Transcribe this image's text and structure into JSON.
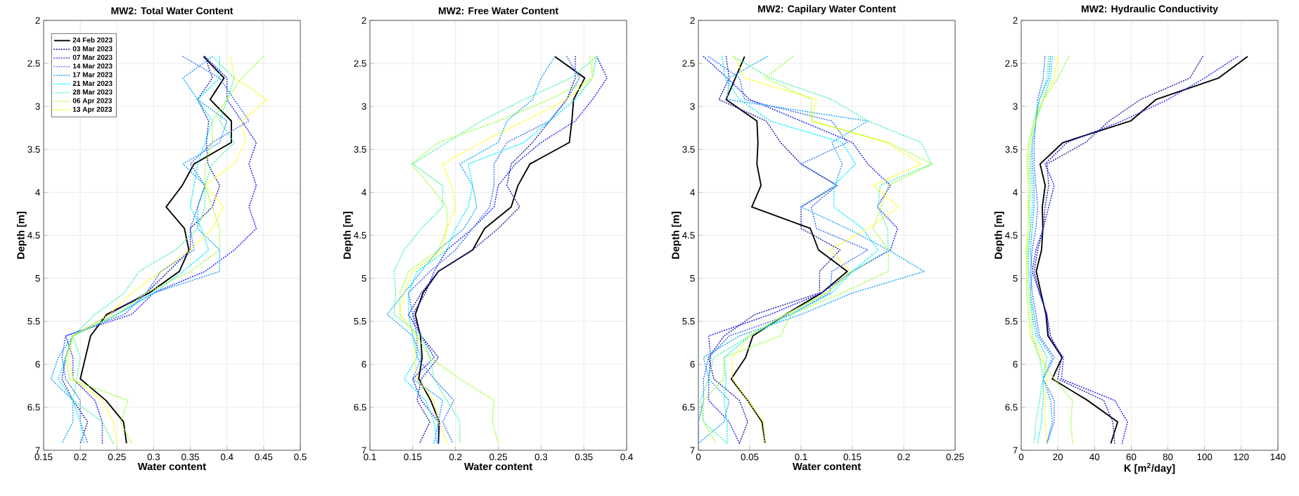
{
  "chart_data": [
    {
      "type": "line",
      "title": "MW2: Total Water Content",
      "xlabel": "Water content",
      "ylabel": "Depth [m]",
      "xlim": [
        0.15,
        0.5
      ],
      "xticks": [
        0.15,
        0.2,
        0.25,
        0.3,
        0.35,
        0.4,
        0.45,
        0.5
      ],
      "ylim": [
        7,
        2
      ],
      "yticks": [
        2,
        2.5,
        3,
        3.5,
        4,
        4.5,
        5,
        5.5,
        6,
        6.5,
        7
      ],
      "grid": true,
      "legend": "top left",
      "series": [
        {
          "name": "24 Feb 2023",
          "color": "#000000",
          "line_style": "solid",
          "x": [
            0.368,
            0.396,
            0.377,
            0.406,
            0.406,
            0.355,
            0.339,
            0.317,
            0.342,
            0.348,
            0.335,
            0.294,
            0.236,
            0.214,
            0.207,
            0.2,
            0.235,
            0.259,
            0.263
          ],
          "values": [
            2.42,
            2.67,
            2.92,
            3.17,
            3.42,
            3.67,
            3.92,
            4.17,
            4.42,
            4.67,
            4.92,
            5.17,
            5.42,
            5.67,
            5.92,
            6.17,
            6.42,
            6.67,
            6.92
          ]
        },
        {
          "name": "03 Mar 2023",
          "color": "#1f1fa8",
          "line_style": "dotted",
          "x": [
            0.37,
            0.38,
            0.36,
            0.375,
            0.372,
            0.374,
            0.39,
            0.38,
            0.35,
            0.35,
            0.32,
            0.29,
            0.24,
            0.19,
            0.18,
            0.175,
            0.19,
            0.21,
            0.2
          ],
          "values": [
            2.42,
            2.67,
            2.92,
            3.17,
            3.42,
            3.67,
            3.92,
            4.17,
            4.42,
            4.67,
            4.92,
            5.17,
            5.42,
            5.67,
            5.92,
            6.17,
            6.42,
            6.67,
            6.92
          ]
        },
        {
          "name": "07 Mar 2023",
          "color": "#2020ff",
          "line_style": "dotted",
          "x": [
            0.37,
            0.4,
            0.4,
            0.42,
            0.44,
            0.43,
            0.44,
            0.43,
            0.44,
            0.41,
            0.37,
            0.3,
            0.27,
            0.18,
            0.19,
            0.19,
            0.22,
            0.23,
            0.23
          ],
          "values": [
            2.42,
            2.67,
            2.92,
            3.17,
            3.42,
            3.67,
            3.92,
            4.17,
            4.42,
            4.67,
            4.92,
            5.17,
            5.42,
            5.67,
            5.92,
            6.17,
            6.42,
            6.67,
            6.92
          ]
        },
        {
          "name": "14 Mar 2023",
          "color": "#3a6cff",
          "line_style": "dotted",
          "x": [
            0.34,
            0.39,
            0.41,
            0.43,
            0.38,
            0.35,
            0.37,
            0.36,
            0.35,
            0.355,
            0.31,
            0.29,
            0.26,
            0.18,
            0.175,
            0.18,
            0.2,
            0.2,
            0.21
          ],
          "values": [
            2.42,
            2.67,
            2.92,
            3.17,
            3.42,
            3.67,
            3.92,
            4.17,
            4.42,
            4.67,
            4.92,
            5.17,
            5.42,
            5.67,
            5.92,
            6.17,
            6.42,
            6.67,
            6.92
          ]
        },
        {
          "name": "17 Mar 2023",
          "color": "#1aa3ff",
          "line_style": "dotted",
          "x": [
            0.38,
            0.34,
            0.36,
            0.4,
            0.39,
            0.34,
            0.37,
            0.36,
            0.36,
            0.39,
            0.39,
            0.3,
            0.25,
            0.19,
            0.17,
            0.16,
            0.19,
            0.19,
            0.175
          ],
          "values": [
            2.42,
            2.67,
            2.92,
            3.17,
            3.42,
            3.67,
            3.92,
            4.17,
            4.42,
            4.67,
            4.92,
            5.17,
            5.42,
            5.67,
            5.92,
            6.17,
            6.42,
            6.67,
            6.92
          ]
        },
        {
          "name": "21 Mar 2023",
          "color": "#00eeff",
          "line_style": "dotted",
          "x": [
            0.39,
            0.39,
            0.36,
            0.38,
            0.37,
            0.36,
            0.355,
            0.35,
            0.365,
            0.375,
            0.34,
            0.3,
            0.25,
            0.19,
            0.18,
            0.17,
            0.19,
            0.2,
            0.205
          ],
          "values": [
            2.42,
            2.67,
            2.92,
            3.17,
            3.42,
            3.67,
            3.92,
            4.17,
            4.42,
            4.67,
            4.92,
            5.17,
            5.42,
            5.67,
            5.92,
            6.17,
            6.42,
            6.67,
            6.92
          ]
        },
        {
          "name": "28 Mar 2023",
          "color": "#40f5a0",
          "line_style": "dotted",
          "x": [
            0.38,
            0.41,
            0.4,
            0.39,
            0.41,
            0.38,
            0.37,
            0.37,
            0.36,
            0.33,
            0.28,
            0.26,
            0.22,
            0.19,
            0.2,
            0.195,
            0.19,
            0.23,
            0.245
          ],
          "values": [
            2.42,
            2.67,
            2.92,
            3.17,
            3.42,
            3.67,
            3.92,
            4.17,
            4.42,
            4.67,
            4.92,
            5.17,
            5.42,
            5.67,
            5.92,
            6.17,
            6.42,
            6.67,
            6.92
          ]
        },
        {
          "name": "06 Apr 2023",
          "color": "#99ff33",
          "line_style": "dotted",
          "x": [
            0.45,
            0.42,
            0.4,
            0.38,
            0.38,
            0.37,
            0.37,
            0.38,
            0.39,
            0.39,
            0.35,
            0.29,
            0.25,
            0.19,
            0.18,
            0.185,
            0.265,
            0.255,
            0.27
          ],
          "values": [
            2.42,
            2.67,
            2.92,
            3.17,
            3.42,
            3.67,
            3.92,
            4.17,
            4.42,
            4.67,
            4.92,
            5.17,
            5.42,
            5.67,
            5.92,
            6.17,
            6.42,
            6.67,
            6.92
          ]
        },
        {
          "name": "13 Apr 2023",
          "color": "#ffff00",
          "line_style": "dotted",
          "x": [
            0.405,
            0.41,
            0.455,
            0.42,
            0.425,
            0.41,
            0.37,
            0.395,
            0.38,
            0.35,
            0.31,
            0.27,
            0.24,
            0.19,
            0.185,
            0.19,
            0.23,
            0.245,
            0.25
          ],
          "values": [
            2.42,
            2.67,
            2.92,
            3.17,
            3.42,
            3.67,
            3.92,
            4.17,
            4.42,
            4.67,
            4.92,
            5.17,
            5.42,
            5.67,
            5.92,
            6.17,
            6.42,
            6.67,
            6.92
          ]
        }
      ]
    },
    {
      "type": "line",
      "title": "MW2: Free Water Content",
      "xlabel": "Water content",
      "ylabel": "Depth [m]",
      "xlim": [
        0.1,
        0.4
      ],
      "xticks": [
        0.1,
        0.15,
        0.2,
        0.25,
        0.3,
        0.35,
        0.4
      ],
      "ylim": [
        7,
        2
      ],
      "yticks": [
        2,
        2.5,
        3,
        3.5,
        4,
        4.5,
        5,
        5.5,
        6,
        6.5,
        7
      ],
      "grid": true,
      "series": [
        {
          "color": "#000000",
          "line_style": "solid",
          "x": [
            0.316,
            0.351,
            0.338,
            0.336,
            0.333,
            0.287,
            0.273,
            0.265,
            0.234,
            0.22,
            0.18,
            0.162,
            0.153,
            0.159,
            0.161,
            0.157,
            0.171,
            0.181,
            0.18
          ],
          "values": [
            2.42,
            2.67,
            2.92,
            3.17,
            3.42,
            3.67,
            3.92,
            4.17,
            4.42,
            4.67,
            4.92,
            5.17,
            5.42,
            5.67,
            5.92,
            6.17,
            6.42,
            6.67,
            6.92
          ]
        },
        {
          "color": "#1f1fa8",
          "line_style": "dotted",
          "x": [
            0.34,
            0.34,
            0.33,
            0.31,
            0.29,
            0.265,
            0.26,
            0.275,
            0.25,
            0.22,
            0.18,
            0.16,
            0.145,
            0.16,
            0.18,
            0.16,
            0.155,
            0.17,
            0.158
          ],
          "values": [
            2.42,
            2.67,
            2.92,
            3.17,
            3.42,
            3.67,
            3.92,
            4.17,
            4.42,
            4.67,
            4.92,
            5.17,
            5.42,
            5.67,
            5.92,
            6.17,
            6.42,
            6.67,
            6.92
          ]
        },
        {
          "color": "#2020ff",
          "line_style": "dotted",
          "x": [
            0.365,
            0.377,
            0.36,
            0.34,
            0.3,
            0.27,
            0.25,
            0.245,
            0.22,
            0.19,
            0.175,
            0.165,
            0.15,
            0.16,
            0.175,
            0.15,
            0.16,
            0.18,
            0.18
          ],
          "values": [
            2.42,
            2.67,
            2.92,
            3.17,
            3.42,
            3.67,
            3.92,
            4.17,
            4.42,
            4.67,
            4.92,
            5.17,
            5.42,
            5.67,
            5.92,
            6.17,
            6.42,
            6.67,
            6.92
          ]
        },
        {
          "color": "#3a6cff",
          "line_style": "dotted",
          "x": [
            0.33,
            0.345,
            0.33,
            0.31,
            0.26,
            0.245,
            0.245,
            0.24,
            0.22,
            0.2,
            0.17,
            0.145,
            0.15,
            0.155,
            0.155,
            0.175,
            0.198,
            0.185,
            0.197
          ],
          "values": [
            2.42,
            2.67,
            2.92,
            3.17,
            3.42,
            3.67,
            3.92,
            4.17,
            4.42,
            4.67,
            4.92,
            5.17,
            5.42,
            5.67,
            5.92,
            6.17,
            6.42,
            6.67,
            6.92
          ]
        },
        {
          "color": "#1aa3ff",
          "line_style": "dotted",
          "x": [
            0.316,
            0.3,
            0.29,
            0.26,
            0.25,
            0.205,
            0.22,
            0.225,
            0.21,
            0.18,
            0.16,
            0.14,
            0.12,
            0.15,
            0.16,
            0.15,
            0.185,
            0.18,
            0.175
          ],
          "values": [
            2.42,
            2.67,
            2.92,
            3.17,
            3.42,
            3.67,
            3.92,
            4.17,
            4.42,
            4.67,
            4.92,
            5.17,
            5.42,
            5.67,
            5.92,
            6.17,
            6.42,
            6.67,
            6.92
          ]
        },
        {
          "color": "#00eeff",
          "line_style": "dotted",
          "x": [
            0.365,
            0.36,
            0.34,
            0.31,
            0.28,
            0.215,
            0.22,
            0.215,
            0.2,
            0.19,
            0.155,
            0.145,
            0.145,
            0.15,
            0.155,
            0.14,
            0.165,
            0.175,
            0.178
          ],
          "values": [
            2.42,
            2.67,
            2.92,
            3.17,
            3.42,
            3.67,
            3.92,
            4.17,
            4.42,
            4.67,
            4.92,
            5.17,
            5.42,
            5.67,
            5.92,
            6.17,
            6.42,
            6.67,
            6.92
          ]
        },
        {
          "color": "#40f5a0",
          "line_style": "dotted",
          "x": [
            0.365,
            0.335,
            0.28,
            0.23,
            0.19,
            0.15,
            0.185,
            0.185,
            0.16,
            0.14,
            0.128,
            0.13,
            0.128,
            0.16,
            0.17,
            0.175,
            0.19,
            0.205,
            0.205
          ],
          "values": [
            2.42,
            2.67,
            2.92,
            3.17,
            3.42,
            3.67,
            3.92,
            4.17,
            4.42,
            4.67,
            4.92,
            5.17,
            5.42,
            5.67,
            5.92,
            6.17,
            6.42,
            6.67,
            6.92
          ]
        },
        {
          "color": "#99ff33",
          "line_style": "dotted",
          "x": [
            0.357,
            0.36,
            0.31,
            0.25,
            0.18,
            0.148,
            0.17,
            0.19,
            0.19,
            0.18,
            0.145,
            0.135,
            0.135,
            0.155,
            0.17,
            0.205,
            0.245,
            0.243,
            0.25
          ],
          "values": [
            2.42,
            2.67,
            2.92,
            3.17,
            3.42,
            3.67,
            3.92,
            4.17,
            4.42,
            4.67,
            4.92,
            5.17,
            5.42,
            5.67,
            5.92,
            6.17,
            6.42,
            6.67,
            6.92
          ]
        },
        {
          "color": "#ffff00",
          "line_style": "dotted",
          "x": [
            0.36,
            0.36,
            0.33,
            0.28,
            0.23,
            0.185,
            0.195,
            0.2,
            0.19,
            0.185,
            0.15,
            0.14,
            0.135,
            0.155,
            0.152,
            0.155,
            0.175,
            0.18,
            0.19
          ],
          "values": [
            2.42,
            2.67,
            2.92,
            3.17,
            3.42,
            3.67,
            3.92,
            4.17,
            4.42,
            4.67,
            4.92,
            5.17,
            5.42,
            5.67,
            5.92,
            6.17,
            6.42,
            6.67,
            6.92
          ]
        }
      ]
    },
    {
      "type": "line",
      "title": "MW2: Capilary Water Content",
      "xlabel": "Water content",
      "ylabel": "Depth [m]",
      "xlim": [
        0,
        0.25
      ],
      "xticks": [
        0,
        0.05,
        0.1,
        0.15,
        0.2,
        0.25
      ],
      "ylim": [
        7,
        2
      ],
      "yticks": [
        2,
        2.5,
        3,
        3.5,
        4,
        4.5,
        5,
        5.5,
        6,
        6.5,
        7
      ],
      "grid": true,
      "series": [
        {
          "color": "#000000",
          "line_style": "solid",
          "x": [
            0.045,
            0.036,
            0.027,
            0.057,
            0.058,
            0.057,
            0.061,
            0.052,
            0.109,
            0.117,
            0.145,
            0.12,
            0.085,
            0.053,
            0.046,
            0.032,
            0.048,
            0.062,
            0.065
          ],
          "values": [
            2.42,
            2.67,
            2.92,
            3.17,
            3.42,
            3.67,
            3.92,
            4.17,
            4.42,
            4.67,
            4.92,
            5.17,
            5.42,
            5.67,
            5.92,
            6.17,
            6.42,
            6.67,
            6.92
          ]
        },
        {
          "color": "#1f1fa8",
          "line_style": "dotted",
          "x": [
            0.027,
            0.03,
            0.02,
            0.066,
            0.08,
            0.1,
            0.135,
            0.1,
            0.1,
            0.138,
            0.118,
            0.118,
            0.055,
            0.025,
            0.01,
            0.015,
            0.04,
            0.048,
            0.04
          ],
          "values": [
            2.42,
            2.67,
            2.92,
            3.17,
            3.42,
            3.67,
            3.92,
            4.17,
            4.42,
            4.67,
            4.92,
            5.17,
            5.42,
            5.67,
            5.92,
            6.17,
            6.42,
            6.67,
            6.92
          ]
        },
        {
          "color": "#2020ff",
          "line_style": "dotted",
          "x": [
            0.005,
            0.028,
            0.05,
            0.1,
            0.15,
            0.165,
            0.187,
            0.174,
            0.194,
            0.187,
            0.15,
            0.12,
            0.07,
            0.01,
            0.012,
            0.01,
            0.01,
            0.03,
            0.04
          ],
          "values": [
            2.42,
            2.67,
            2.92,
            3.17,
            3.42,
            3.67,
            3.92,
            4.17,
            4.42,
            4.67,
            4.92,
            5.17,
            5.42,
            5.67,
            5.92,
            6.17,
            6.42,
            6.67,
            6.92
          ]
        },
        {
          "color": "#3a6cff",
          "line_style": "dotted",
          "x": [
            0.01,
            0.04,
            0.045,
            0.13,
            0.145,
            0.1,
            0.135,
            0.11,
            0.115,
            0.165,
            0.13,
            0.128,
            0.09,
            0.03,
            0.01,
            0.005,
            0.005,
            0.0,
            0.0
          ],
          "values": [
            2.42,
            2.67,
            2.92,
            3.17,
            3.42,
            3.67,
            3.92,
            4.17,
            4.42,
            4.67,
            4.92,
            5.17,
            5.42,
            5.67,
            5.92,
            6.17,
            6.42,
            6.67,
            6.92
          ]
        },
        {
          "color": "#1aa3ff",
          "line_style": "dotted",
          "x": [
            0.067,
            0.03,
            0.028,
            0.165,
            0.13,
            0.14,
            0.133,
            0.1,
            0.145,
            0.185,
            0.22,
            0.15,
            0.1,
            0.04,
            0.005,
            0.01,
            0.03,
            0.025,
            0.0
          ],
          "values": [
            2.42,
            2.67,
            2.92,
            3.17,
            3.42,
            3.67,
            3.92,
            4.17,
            4.42,
            4.67,
            4.92,
            5.17,
            5.42,
            5.67,
            5.92,
            6.17,
            6.42,
            6.67,
            6.92
          ]
        },
        {
          "color": "#00eeff",
          "line_style": "dotted",
          "x": [
            0.023,
            0.026,
            0.04,
            0.07,
            0.14,
            0.153,
            0.132,
            0.132,
            0.16,
            0.175,
            0.15,
            0.13,
            0.09,
            0.05,
            0.025,
            0.027,
            0.025,
            0.028,
            0.028
          ],
          "values": [
            2.42,
            2.67,
            2.92,
            3.17,
            3.42,
            3.67,
            3.92,
            4.17,
            4.42,
            4.67,
            4.92,
            5.17,
            5.42,
            5.67,
            5.92,
            6.17,
            6.42,
            6.67,
            6.92
          ]
        },
        {
          "color": "#40f5a0",
          "line_style": "dotted",
          "x": [
            0.034,
            0.07,
            0.13,
            0.165,
            0.217,
            0.227,
            0.177,
            0.175,
            0.184,
            0.185,
            0.15,
            0.125,
            0.085,
            0.05,
            0.015,
            0.01,
            0.002,
            0.005,
            0.028
          ],
          "values": [
            2.42,
            2.67,
            2.92,
            3.17,
            3.42,
            3.67,
            3.92,
            4.17,
            4.42,
            4.67,
            4.92,
            5.17,
            5.42,
            5.67,
            5.92,
            6.17,
            6.42,
            6.67,
            6.92
          ]
        },
        {
          "color": "#99ff33",
          "line_style": "dotted",
          "x": [
            0.092,
            0.065,
            0.11,
            0.11,
            0.185,
            0.228,
            0.185,
            0.178,
            0.17,
            0.185,
            0.185,
            0.14,
            0.09,
            0.08,
            0.025,
            0.025,
            0.005,
            0.005,
            0.017
          ],
          "values": [
            2.42,
            2.67,
            2.92,
            3.17,
            3.42,
            3.67,
            3.92,
            4.17,
            4.42,
            4.67,
            4.92,
            5.17,
            5.42,
            5.67,
            5.92,
            6.17,
            6.42,
            6.67,
            6.92
          ]
        },
        {
          "color": "#ffff00",
          "line_style": "dotted",
          "x": [
            0.035,
            0.045,
            0.115,
            0.11,
            0.183,
            0.217,
            0.17,
            0.195,
            0.165,
            0.128,
            0.148,
            0.125,
            0.085,
            0.05,
            0.033,
            0.033,
            0.048,
            0.063,
            0.065
          ],
          "values": [
            2.42,
            2.67,
            2.92,
            3.17,
            3.42,
            3.67,
            3.92,
            4.17,
            4.42,
            4.67,
            4.92,
            5.17,
            5.42,
            5.67,
            5.92,
            6.17,
            6.42,
            6.67,
            6.92
          ]
        }
      ]
    },
    {
      "type": "line",
      "title": "MW2: Hydraulic Conductivity",
      "xlabel": "K [m$^{2}$/day]",
      "ylabel": "Depth [m]",
      "xlim": [
        0,
        140
      ],
      "xticks": [
        0,
        20,
        40,
        60,
        80,
        100,
        120,
        140
      ],
      "ylim": [
        7,
        2
      ],
      "yticks": [
        2,
        2.5,
        3,
        3.5,
        4,
        4.5,
        5,
        5.5,
        6,
        6.5,
        7
      ],
      "grid": true,
      "series": [
        {
          "color": "#000000",
          "line_style": "solid",
          "x": [
            123.5,
            107.7,
            73.5,
            59.7,
            22.8,
            10.3,
            13.1,
            11.5,
            11.8,
            11.1,
            8.2,
            10.8,
            13.5,
            14.6,
            22.3,
            16.9,
            36.2,
            52.6,
            48.9
          ],
          "values": [
            2.42,
            2.67,
            2.92,
            3.17,
            3.42,
            3.67,
            3.92,
            4.17,
            4.42,
            4.67,
            4.92,
            5.17,
            5.42,
            5.67,
            5.92,
            6.17,
            6.42,
            6.67,
            6.92
          ]
        },
        {
          "color": "#1f1fa8",
          "line_style": "dotted",
          "x": [
            99,
            92,
            65,
            48,
            35,
            14,
            15,
            13,
            12,
            9,
            7,
            10,
            14,
            16,
            22,
            20,
            45,
            50,
            51
          ],
          "values": [
            2.42,
            2.67,
            2.92,
            3.17,
            3.42,
            3.67,
            3.92,
            4.17,
            4.42,
            4.67,
            4.92,
            5.17,
            5.42,
            5.67,
            5.92,
            6.17,
            6.42,
            6.67,
            6.92
          ]
        },
        {
          "color": "#2020ff",
          "line_style": "dotted",
          "x": [
            118,
            100,
            80,
            55,
            25,
            13,
            18,
            15,
            12,
            8,
            6,
            10,
            14,
            15,
            23,
            22,
            51,
            58,
            55
          ],
          "values": [
            2.42,
            2.67,
            2.92,
            3.17,
            3.42,
            3.67,
            3.92,
            4.17,
            4.42,
            4.67,
            4.92,
            5.17,
            5.42,
            5.67,
            5.92,
            6.17,
            6.42,
            6.67,
            6.92
          ]
        },
        {
          "color": "#3a6cff",
          "line_style": "dotted",
          "x": [
            13,
            12,
            9,
            8,
            7,
            7,
            8,
            9,
            8,
            6,
            5,
            6,
            8,
            10,
            18,
            12,
            18,
            18,
            14
          ],
          "values": [
            2.42,
            2.67,
            2.92,
            3.17,
            3.42,
            3.67,
            3.92,
            4.17,
            4.42,
            4.67,
            4.92,
            5.17,
            5.42,
            5.67,
            5.92,
            6.17,
            6.42,
            6.67,
            6.92
          ]
        },
        {
          "color": "#1aa3ff",
          "line_style": "dotted",
          "x": [
            16,
            15,
            10,
            8,
            6,
            6,
            7,
            7,
            6,
            5,
            6,
            5,
            7,
            9,
            17,
            12,
            16,
            17,
            14
          ],
          "values": [
            2.42,
            2.67,
            2.92,
            3.17,
            3.42,
            3.67,
            3.92,
            4.17,
            4.42,
            4.67,
            4.92,
            5.17,
            5.42,
            5.67,
            5.92,
            6.17,
            6.42,
            6.67,
            6.92
          ]
        },
        {
          "color": "#00eeff",
          "line_style": "dotted",
          "x": [
            17,
            16,
            12,
            8,
            6,
            5,
            6,
            6,
            5,
            4,
            4,
            5,
            6,
            8,
            14,
            12,
            12,
            11,
            9
          ],
          "values": [
            2.42,
            2.67,
            2.92,
            3.17,
            3.42,
            3.67,
            3.92,
            4.17,
            4.42,
            4.67,
            4.92,
            5.17,
            5.42,
            5.67,
            5.92,
            6.17,
            6.42,
            6.67,
            6.92
          ]
        },
        {
          "color": "#40f5a0",
          "line_style": "dotted",
          "x": [
            15,
            14,
            10,
            7,
            5,
            4,
            5,
            4.5,
            5,
            3.5,
            3,
            4,
            6,
            6,
            10,
            12,
            10,
            8,
            7
          ],
          "values": [
            2.42,
            2.67,
            2.92,
            3.17,
            3.42,
            3.67,
            3.92,
            4.17,
            4.42,
            4.67,
            4.92,
            5.17,
            5.42,
            5.67,
            5.92,
            6.17,
            6.42,
            6.67,
            6.92
          ]
        },
        {
          "color": "#99ff33",
          "line_style": "dotted",
          "x": [
            26,
            20,
            12,
            7,
            4,
            3,
            4,
            4,
            4,
            3,
            3,
            3,
            4,
            5,
            10,
            18,
            28,
            27,
            28
          ],
          "values": [
            2.42,
            2.67,
            2.92,
            3.17,
            3.42,
            3.67,
            3.92,
            4.17,
            4.42,
            4.67,
            4.92,
            5.17,
            5.42,
            5.67,
            5.92,
            6.17,
            6.42,
            6.67,
            6.92
          ]
        },
        {
          "color": "#ffff00",
          "line_style": "dotted",
          "x": [
            20,
            18,
            12,
            8,
            5,
            4,
            4,
            3.5,
            4,
            2.5,
            3,
            4,
            5,
            6,
            12,
            14,
            13,
            13,
            14
          ],
          "values": [
            2.42,
            2.67,
            2.92,
            3.17,
            3.42,
            3.67,
            3.92,
            4.17,
            4.42,
            4.67,
            4.92,
            5.17,
            5.42,
            5.67,
            5.92,
            6.17,
            6.42,
            6.67,
            6.92
          ]
        }
      ]
    }
  ]
}
